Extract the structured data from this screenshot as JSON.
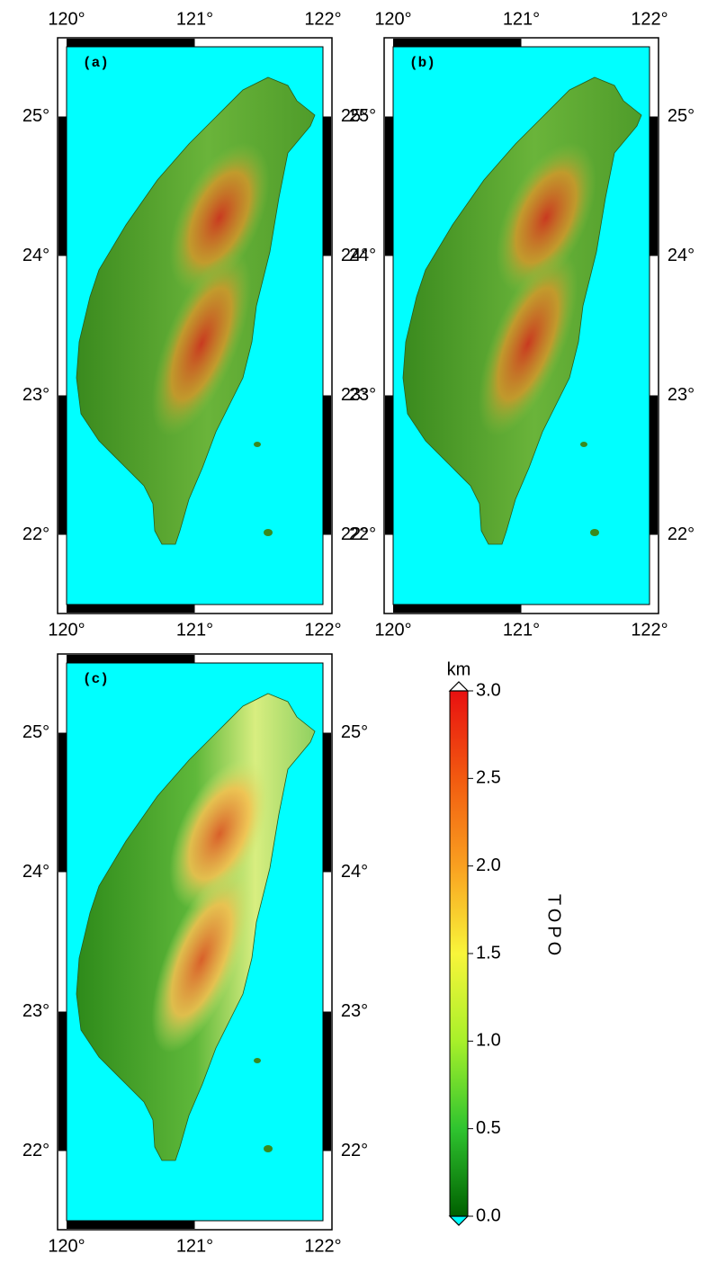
{
  "panels": [
    {
      "label": "(a)",
      "xlim": [
        120,
        122
      ],
      "ylim": [
        21.5,
        25.5
      ],
      "top_labels": true,
      "xticks": [
        {
          "value": 120,
          "label": "120°"
        },
        {
          "value": 121,
          "label": "121°"
        },
        {
          "value": 122,
          "label": "122°"
        }
      ],
      "yticks": [
        {
          "value": 22,
          "label": "22°"
        },
        {
          "value": 23,
          "label": "23°"
        },
        {
          "value": 24,
          "label": "24°"
        },
        {
          "value": 25,
          "label": "25°"
        }
      ]
    },
    {
      "label": "(b)",
      "xlim": [
        120,
        122
      ],
      "ylim": [
        21.5,
        25.5
      ],
      "top_labels": true,
      "xticks": [
        {
          "value": 120,
          "label": "120°"
        },
        {
          "value": 121,
          "label": "121°"
        },
        {
          "value": 122,
          "label": "122°"
        }
      ],
      "yticks": [
        {
          "value": 22,
          "label": "22°"
        },
        {
          "value": 23,
          "label": "23°"
        },
        {
          "value": 24,
          "label": "24°"
        },
        {
          "value": 25,
          "label": "25°"
        }
      ]
    },
    {
      "label": "(c)",
      "xlim": [
        120,
        122
      ],
      "ylim": [
        21.5,
        25.5
      ],
      "top_labels": false,
      "xticks": [
        {
          "value": 120,
          "label": "120°"
        },
        {
          "value": 121,
          "label": "121°"
        },
        {
          "value": 122,
          "label": "122°"
        }
      ],
      "yticks": [
        {
          "value": 22,
          "label": "22°"
        },
        {
          "value": 23,
          "label": "23°"
        },
        {
          "value": 24,
          "label": "24°"
        },
        {
          "value": 25,
          "label": "25°"
        }
      ]
    }
  ],
  "colorbar": {
    "unit": "km",
    "title": "TOPO",
    "lim": [
      0,
      3
    ],
    "ticks": [
      {
        "value": 0,
        "label": "0.0"
      },
      {
        "value": 0.5,
        "label": "0.5"
      },
      {
        "value": 1,
        "label": "1.0"
      },
      {
        "value": 1.5,
        "label": "1.5"
      },
      {
        "value": 2,
        "label": "2.0"
      },
      {
        "value": 2.5,
        "label": "2.5"
      },
      {
        "value": 3,
        "label": "3.0"
      }
    ],
    "colors": [
      "#006000",
      "#2fc42f",
      "#a8f02a",
      "#f8f53a",
      "#f9a020",
      "#f25a10",
      "#e81010"
    ]
  }
}
